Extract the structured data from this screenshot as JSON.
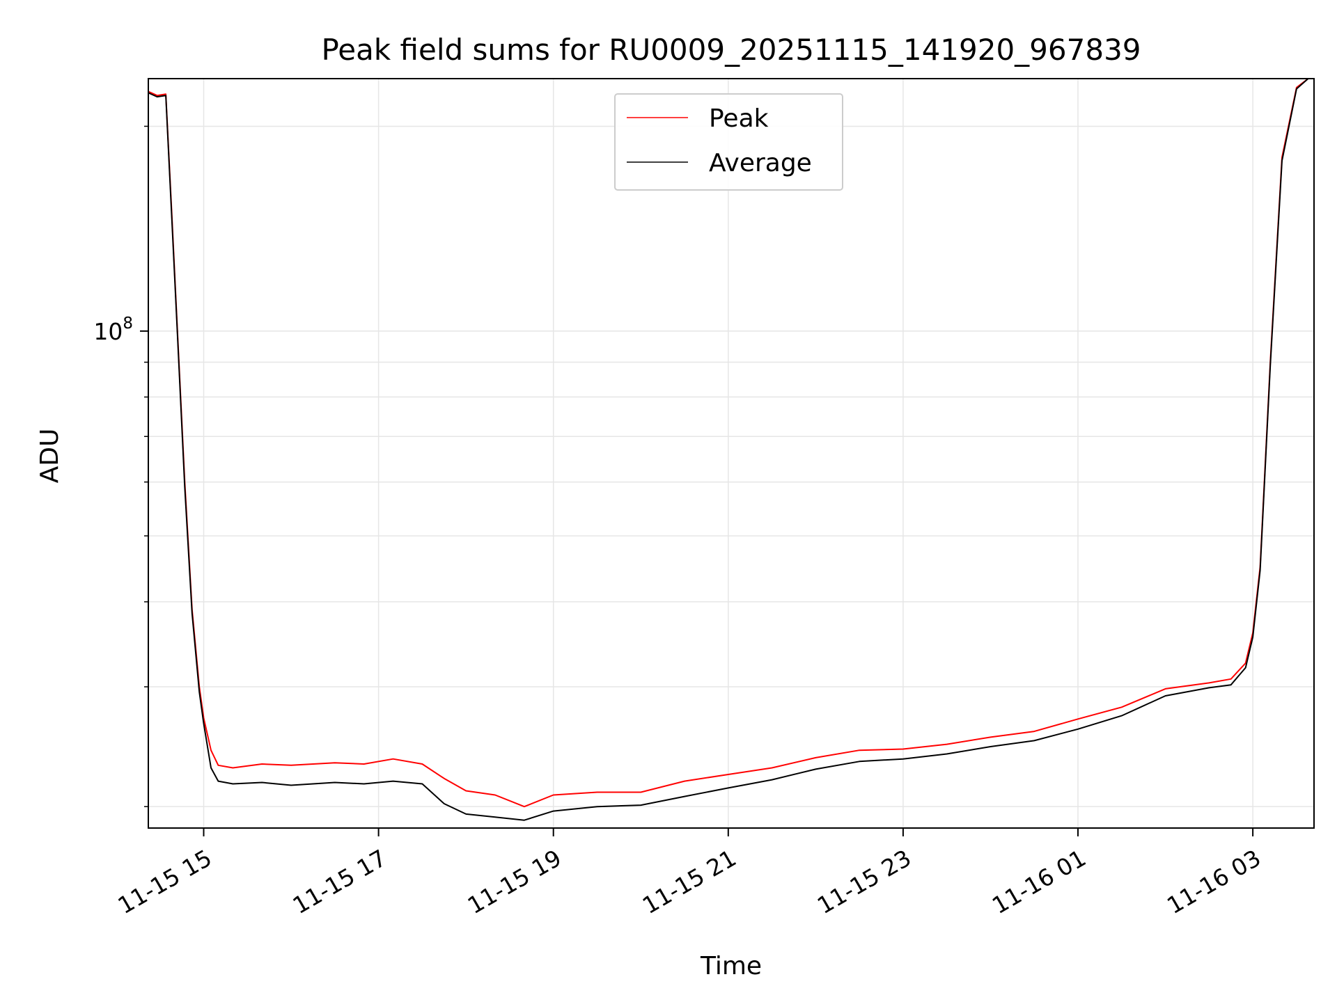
{
  "chart_data": {
    "type": "line",
    "title": "Peak field sums for RU0009_20251115_141920_967839",
    "xlabel": "Time",
    "ylabel": "ADU",
    "x_tick_labels": [
      "11-15 15",
      "11-15 17",
      "11-15 19",
      "11-15 21",
      "11-15 23",
      "11-16 01",
      "11-16 03"
    ],
    "x_ticks": [
      "2025-11-15 15:00",
      "2025-11-15 17:00",
      "2025-11-15 19:00",
      "2025-11-15 21:00",
      "2025-11-15 23:00",
      "2025-11-16 01:00",
      "2025-11-16 03:00"
    ],
    "xlim": [
      "2025-11-15 14:22",
      "2025-11-16 03:42"
    ],
    "y_scale": "log",
    "ylim": [
      18600000,
      235000000
    ],
    "y_tick_labels": [
      {
        "base": "10",
        "exp": "8",
        "value": 100000000
      }
    ],
    "y_minor_ticks": [
      20000000,
      30000000,
      40000000,
      50000000,
      60000000,
      70000000,
      80000000,
      90000000,
      200000000
    ],
    "grid": true,
    "legend": "top-center",
    "series": [
      {
        "name": "Peak",
        "color": "#ff0000",
        "x": [
          "2025-11-15 14:22",
          "2025-11-15 14:28",
          "2025-11-15 14:34",
          "2025-11-15 14:38",
          "2025-11-15 14:42",
          "2025-11-15 14:47",
          "2025-11-15 14:52",
          "2025-11-15 14:57",
          "2025-11-15 15:00",
          "2025-11-15 15:05",
          "2025-11-15 15:10",
          "2025-11-15 15:20",
          "2025-11-15 15:40",
          "2025-11-15 16:00",
          "2025-11-15 16:30",
          "2025-11-15 16:50",
          "2025-11-15 17:10",
          "2025-11-15 17:30",
          "2025-11-15 17:45",
          "2025-11-15 18:00",
          "2025-11-15 18:20",
          "2025-11-15 18:40",
          "2025-11-15 19:00",
          "2025-11-15 19:30",
          "2025-11-15 20:00",
          "2025-11-15 20:30",
          "2025-11-15 21:00",
          "2025-11-15 21:30",
          "2025-11-15 22:00",
          "2025-11-15 22:30",
          "2025-11-15 23:00",
          "2025-11-15 23:30",
          "2025-11-16 00:00",
          "2025-11-16 00:30",
          "2025-11-16 01:00",
          "2025-11-16 01:30",
          "2025-11-16 02:00",
          "2025-11-16 02:30",
          "2025-11-16 02:45",
          "2025-11-16 02:55",
          "2025-11-16 03:00",
          "2025-11-16 03:05",
          "2025-11-16 03:12",
          "2025-11-16 03:20",
          "2025-11-16 03:30",
          "2025-11-16 03:38"
        ],
        "values": [
          225000000,
          222000000,
          223000000,
          150000000,
          100000000,
          60000000,
          39000000,
          30000000,
          27000000,
          24200000,
          23000000,
          22800000,
          23100000,
          23000000,
          23200000,
          23100000,
          23500000,
          23100000,
          22000000,
          21100000,
          20800000,
          20000000,
          20800000,
          21000000,
          21000000,
          21800000,
          22300000,
          22800000,
          23600000,
          24200000,
          24300000,
          24700000,
          25300000,
          25800000,
          26900000,
          28000000,
          29800000,
          30400000,
          30800000,
          32500000,
          36000000,
          45000000,
          90000000,
          180000000,
          228000000,
          235000000
        ]
      },
      {
        "name": "Average",
        "color": "#000000",
        "x": [
          "2025-11-15 14:22",
          "2025-11-15 14:28",
          "2025-11-15 14:34",
          "2025-11-15 14:38",
          "2025-11-15 14:42",
          "2025-11-15 14:47",
          "2025-11-15 14:52",
          "2025-11-15 14:57",
          "2025-11-15 15:00",
          "2025-11-15 15:05",
          "2025-11-15 15:10",
          "2025-11-15 15:20",
          "2025-11-15 15:40",
          "2025-11-15 16:00",
          "2025-11-15 16:30",
          "2025-11-15 16:50",
          "2025-11-15 17:10",
          "2025-11-15 17:30",
          "2025-11-15 17:45",
          "2025-11-15 18:00",
          "2025-11-15 18:20",
          "2025-11-15 18:40",
          "2025-11-15 19:00",
          "2025-11-15 19:30",
          "2025-11-15 20:00",
          "2025-11-15 20:30",
          "2025-11-15 21:00",
          "2025-11-15 21:30",
          "2025-11-15 22:00",
          "2025-11-15 22:30",
          "2025-11-15 23:00",
          "2025-11-15 23:30",
          "2025-11-16 00:00",
          "2025-11-16 00:30",
          "2025-11-16 01:00",
          "2025-11-16 01:30",
          "2025-11-16 02:00",
          "2025-11-16 02:30",
          "2025-11-16 02:45",
          "2025-11-16 02:55",
          "2025-11-16 03:00",
          "2025-11-16 03:05",
          "2025-11-16 03:12",
          "2025-11-16 03:20",
          "2025-11-16 03:30",
          "2025-11-16 03:38"
        ],
        "values": [
          224000000,
          221000000,
          222000000,
          148000000,
          99000000,
          59000000,
          38500000,
          29500000,
          26500000,
          22800000,
          21800000,
          21600000,
          21700000,
          21500000,
          21700000,
          21600000,
          21800000,
          21600000,
          20200000,
          19500000,
          19300000,
          19100000,
          19700000,
          20000000,
          20100000,
          20700000,
          21300000,
          21900000,
          22700000,
          23300000,
          23500000,
          23900000,
          24500000,
          25000000,
          26000000,
          27200000,
          29100000,
          29900000,
          30200000,
          32000000,
          35500000,
          44500000,
          89000000,
          178000000,
          227000000,
          235000000
        ]
      }
    ]
  }
}
